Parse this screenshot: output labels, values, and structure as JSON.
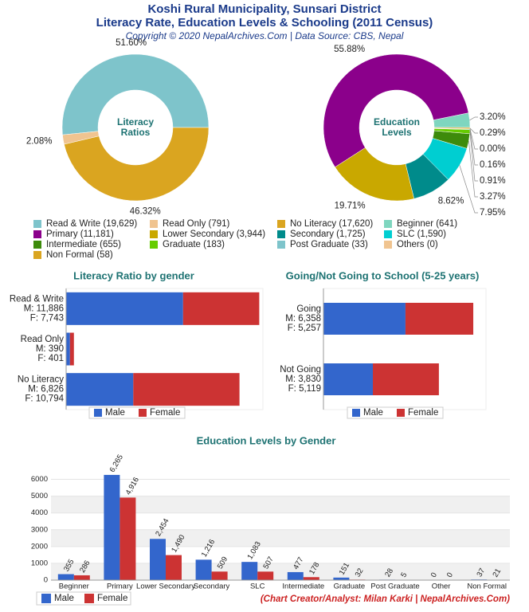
{
  "header": {
    "title": "Koshi Rural Municipality, Sunsari District",
    "subtitle": "Literacy Rate, Education Levels & Schooling (2011 Census)",
    "copyright": "Copyright © 2020 NepalArchives.Com | Data Source: CBS, Nepal"
  },
  "chart_data": [
    {
      "type": "donut",
      "center_label": [
        "Literacy",
        "Ratios"
      ],
      "categories": [
        "Read & Write",
        "Read Only",
        "No Literacy"
      ],
      "values": [
        51.6,
        2.08,
        46.32
      ],
      "value_labels": [
        "51.60%",
        "2.08%",
        "46.32%"
      ],
      "colors": [
        "#7ec4cb",
        "#f0c490",
        "#daa520"
      ]
    },
    {
      "type": "donut",
      "center_label": [
        "Education",
        "Levels"
      ],
      "categories": [
        "Beginner",
        "Primary",
        "Lower Secondary",
        "Secondary",
        "SLC",
        "Intermediate",
        "Graduate",
        "Post Graduate",
        "Others",
        "Non Formal"
      ],
      "values": [
        3.2,
        55.88,
        19.71,
        8.62,
        7.95,
        3.27,
        0.91,
        0.16,
        0.0,
        0.29
      ],
      "value_labels": [
        "3.20%",
        "55.88%",
        "19.71%",
        "8.62%",
        "7.95%",
        "3.27%",
        "0.91%",
        "0.16%",
        "0.00%",
        "0.29%"
      ],
      "colors": [
        "#7fd6bf",
        "#8b008b",
        "#c9a800",
        "#008b8b",
        "#00ced1",
        "#3d8b0b",
        "#66cc00",
        "#7ec4cb",
        "#f0c490",
        "#daa520"
      ]
    },
    {
      "type": "hbar",
      "title": "Literacy Ratio by gender",
      "categories": [
        "Read & Write",
        "Read Only",
        "No Literacy"
      ],
      "xlim": [
        0,
        20000
      ],
      "series": [
        {
          "name": "Male",
          "color": "#3366cc",
          "values": [
            11886,
            390,
            6826
          ],
          "value_labels": [
            "M: 11,886",
            "M: 390",
            "M: 6,826"
          ]
        },
        {
          "name": "Female",
          "color": "#cc3333",
          "values": [
            7743,
            401,
            10794
          ],
          "value_labels": [
            "F: 7,743",
            "F: 401",
            "F: 10,794"
          ]
        }
      ]
    },
    {
      "type": "hbar",
      "title": "Going/Not Going to School (5-25 years)",
      "categories": [
        "Going",
        "Not Going"
      ],
      "xlim": [
        0,
        12600
      ],
      "series": [
        {
          "name": "Male",
          "color": "#3366cc",
          "values": [
            6358,
            3830
          ],
          "value_labels": [
            "M: 6,358",
            "M: 3,830"
          ]
        },
        {
          "name": "Female",
          "color": "#cc3333",
          "values": [
            5257,
            5119
          ],
          "value_labels": [
            "F: 5,257",
            "F: 5,119"
          ]
        }
      ]
    },
    {
      "type": "vbar",
      "title": "Education Levels by Gender",
      "categories": [
        "Beginner",
        "Primary",
        "Lower Secondary",
        "Secondary",
        "SLC",
        "Intermediate",
        "Graduate",
        "Post Graduate",
        "Other",
        "Non Formal"
      ],
      "ylim": [
        0,
        6500
      ],
      "yticks": [
        0,
        1000,
        2000,
        3000,
        4000,
        5000,
        6000
      ],
      "series": [
        {
          "name": "Male",
          "color": "#3366cc",
          "values": [
            355,
            6265,
            2454,
            1216,
            1083,
            477,
            151,
            28,
            0,
            37
          ],
          "value_labels": [
            "355",
            "6,265",
            "2,454",
            "1,216",
            "1,083",
            "477",
            "151",
            "28",
            "0",
            "37"
          ]
        },
        {
          "name": "Female",
          "color": "#cc3333",
          "values": [
            286,
            4916,
            1490,
            509,
            507,
            178,
            32,
            5,
            0,
            21
          ],
          "value_labels": [
            "286",
            "4,916",
            "1,490",
            "509",
            "507",
            "178",
            "32",
            "5",
            "0",
            "21"
          ]
        }
      ]
    }
  ],
  "legend": {
    "items": [
      {
        "label": "Read & Write (19,629)",
        "color": "#7ec4cb"
      },
      {
        "label": "Read Only (791)",
        "color": "#f0c490"
      },
      {
        "label": "No Literacy (17,620)",
        "color": "#daa520"
      },
      {
        "label": "Beginner (641)",
        "color": "#7fd6bf"
      },
      {
        "label": "Primary (11,181)",
        "color": "#8b008b"
      },
      {
        "label": "Lower Secondary (3,944)",
        "color": "#c9a800"
      },
      {
        "label": "Secondary (1,725)",
        "color": "#008b8b"
      },
      {
        "label": "SLC (1,590)",
        "color": "#00ced1"
      },
      {
        "label": "Intermediate (655)",
        "color": "#3d8b0b"
      },
      {
        "label": "Graduate (183)",
        "color": "#66cc00"
      },
      {
        "label": "Post Graduate (33)",
        "color": "#7ec4cb"
      },
      {
        "label": "Others (0)",
        "color": "#f0c490"
      },
      {
        "label": "Non Formal (58)",
        "color": "#daa520"
      }
    ]
  },
  "footer": "(Chart Creator/Analyst: Milan Karki | NepalArchives.Com)"
}
